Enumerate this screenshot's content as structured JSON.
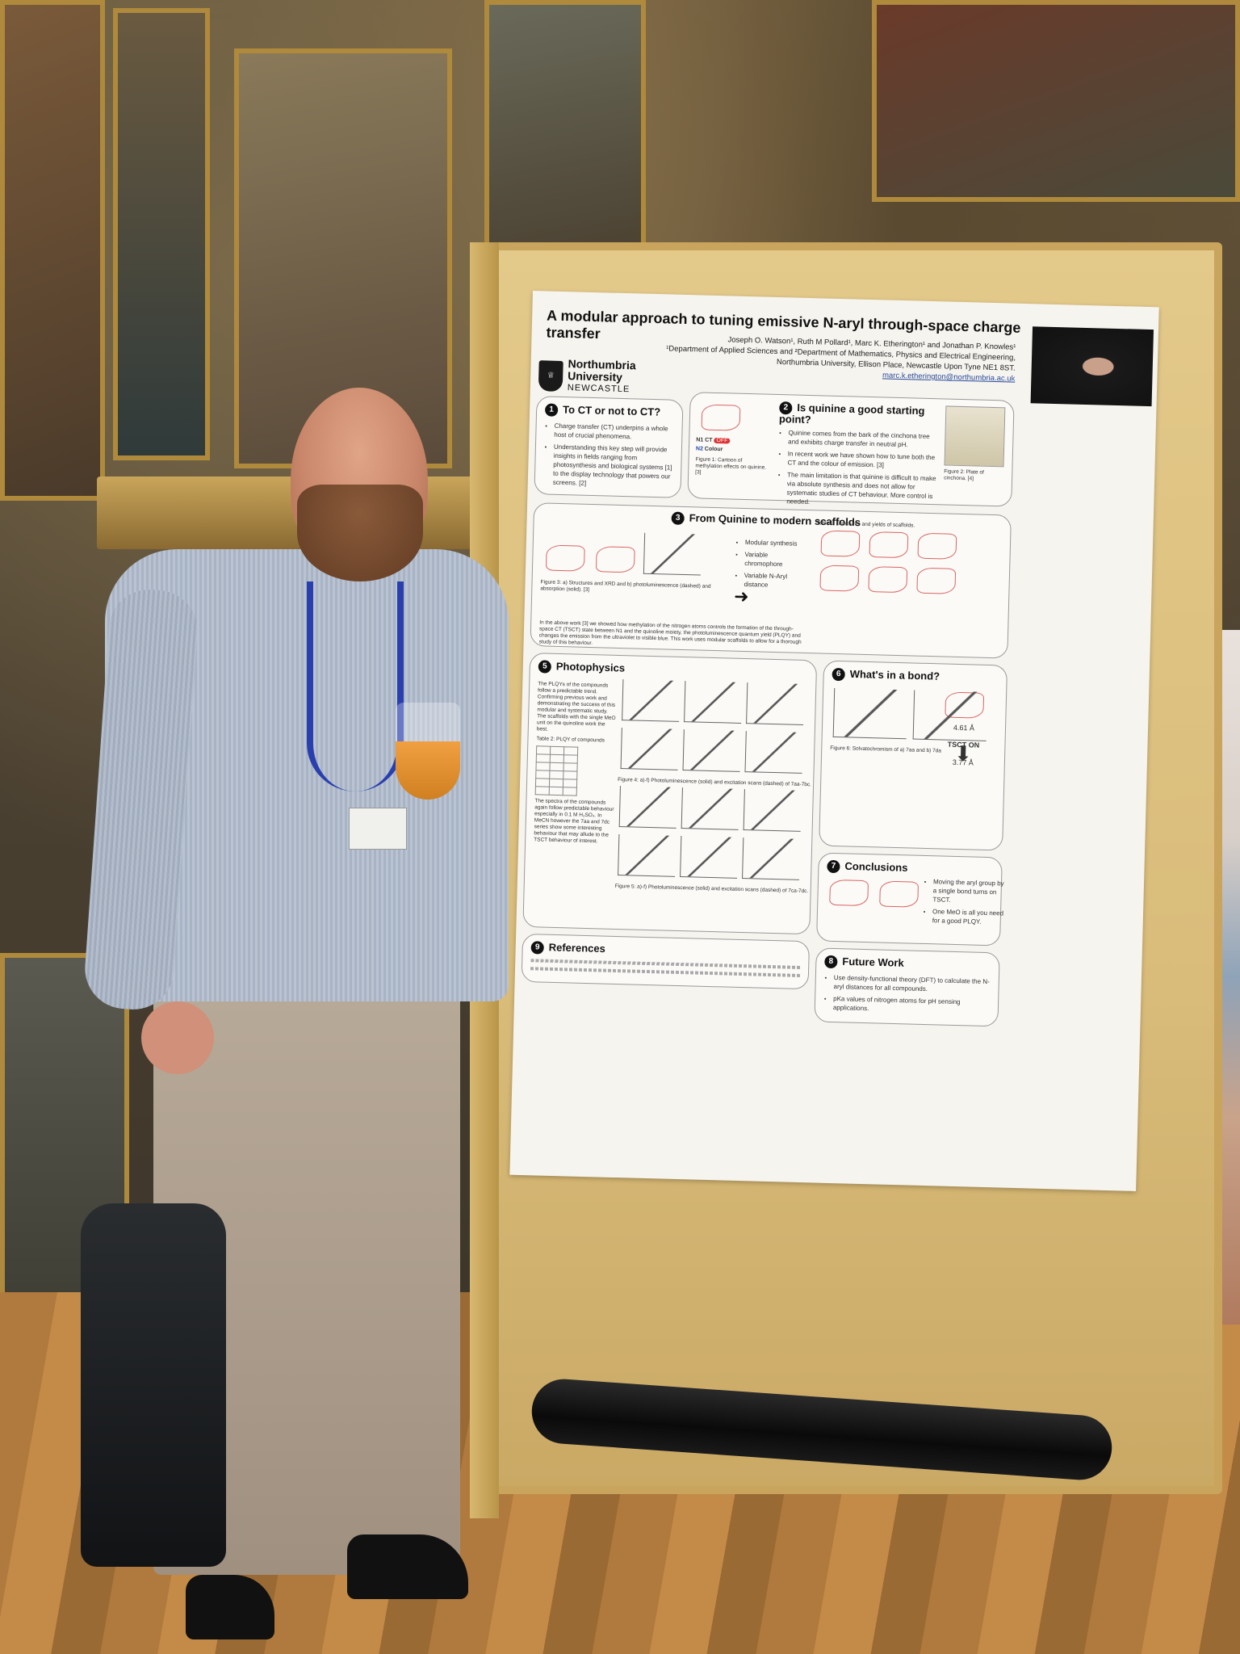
{
  "poster": {
    "title": "A modular approach to tuning emissive N-aryl through-space charge transfer",
    "authors": "Joseph O. Watson¹, Ruth M Pollard¹, Marc K. Etherington¹ and Jonathan P. Knowles¹",
    "affiliation_1": "¹Department of Applied Sciences and ²Department of Mathematics, Physics and Electrical Engineering,",
    "affiliation_2": "Northumbria University, Ellison Place, Newcastle Upon Tyne NE1 8ST.",
    "email": "marc.k.etherington@northumbria.ac.uk",
    "university": {
      "line1": "Northumbria",
      "line2": "University",
      "city": "NEWCASTLE"
    },
    "sections": {
      "s1": {
        "number": "1",
        "heading": "To CT or not to CT?",
        "bullets": [
          "Charge transfer (CT) underpins a whole host of crucial phenomena.",
          "Understanding this key step will provide insights in fields ranging from photosynthesis and biological systems [1] to the display technology that powers our screens. [2]"
        ]
      },
      "s2": {
        "number": "2",
        "heading": "Is quinine a good starting point?",
        "bullets": [
          "Quinine comes from the bark of the cinchona tree and exhibits charge transfer in neutral pH.",
          "In recent work we have shown how to tune both the CT and the colour of emission. [3]",
          "The main limitation is that quinine is difficult to make via absolute synthesis and does not allow for systematic studies of CT behaviour. More control is needed."
        ],
        "labels": {
          "n1": "N1",
          "ct": "CT",
          "off": "OFF",
          "n2": "N2",
          "colour": "Colour"
        },
        "fig1": "Figure 1: Cartoon of methylation effects on quinine. [3]",
        "fig2": "Figure 2: Plate of cinchona. [4]"
      },
      "s3": {
        "number": "3",
        "heading": "From Quinine to modern scaffolds",
        "bullets": [
          "Modular synthesis",
          "Variable chromophore",
          "Variable N-Aryl distance"
        ],
        "fig3": "Figure 3: a) Structures and XRD and b) photoluminescence (dashed) and absorption (solid). [3]",
        "table1": "Table 1. Structures and yields of scaffolds.",
        "body": "In the above work [3] we showed how methylation of the nitrogen atoms controls the formation of the through-space CT (TSCT) state between N1 and the quinoline moiety, the photoluminescence quantum yield (PLQY) and changes the emission from the ultraviolet to visible blue. This work uses modular scaffolds to allow for a thorough study of this behaviour."
      },
      "s5": {
        "number": "5",
        "heading": "Photophysics",
        "body1": "The PLQYs of the compounds follow a predictable trend. Confirming previous work and demonstrating the success of this modular and systematic study. The scaffolds with the single MeO unit on the quinoline work the best.",
        "table2": "Table 2: PLQY of compounds",
        "body2": "The spectra of the compounds again follow predictable behaviour especially in 0.1 M H₂SO₄. In MeCN however the 7aa and 7dc series show some interesting behaviour that may allude to the TSCT behaviour of interest.",
        "fig4": "Figure 4: a)-f) Photoluminescence (solid) and excitation scans (dashed) of 7aa-7bc.",
        "fig5": "Figure 5: a)-f) Photoluminescence (solid) and excitation scans (dashed) of 7ca-7dc."
      },
      "s6": {
        "number": "6",
        "heading": "What's in a bond?",
        "distance_1": "4.61 Å",
        "tsct": "TSCT ON",
        "distance_2": "3.77 Å",
        "fig6": "Figure 6: Solvatochromism of a) 7aa and b) 7da"
      },
      "s7": {
        "number": "7",
        "heading": "Conclusions",
        "bullets": [
          "Moving the aryl group by a single bond turns on TSCT.",
          "One MeO is all you need for a good PLQY."
        ]
      },
      "s8": {
        "number": "8",
        "heading": "Future Work",
        "bullets": [
          "Use density-functional theory (DFT) to calculate the N-aryl distances for all compounds.",
          "pKa values of nitrogen atoms for pH sensing applications."
        ]
      },
      "s9": {
        "number": "9",
        "heading": "References"
      }
    }
  }
}
